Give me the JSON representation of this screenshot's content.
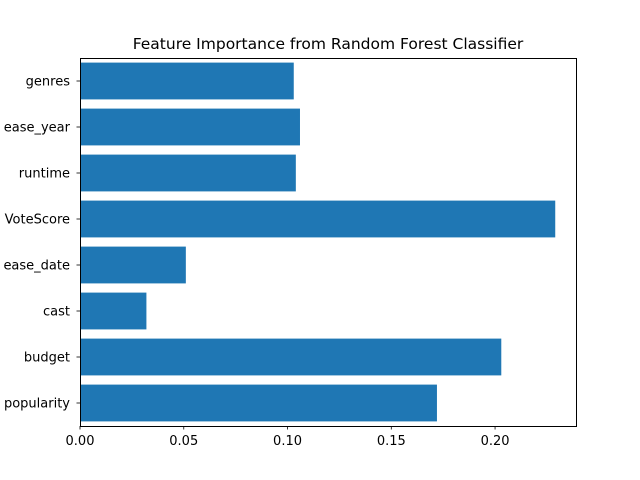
{
  "chart_data": {
    "type": "bar",
    "orientation": "horizontal",
    "title": "Feature Importance from Random Forest Classifier",
    "xlabel": "",
    "ylabel": "",
    "categories": [
      "popularity",
      "budget",
      "cast",
      "release_date",
      "VoteScore",
      "runtime",
      "release_year",
      "genres"
    ],
    "category_labels": [
      "popularity",
      "budget",
      "cast",
      "ease_date",
      "VoteScore",
      "runtime",
      "ease_year",
      "genres"
    ],
    "values": [
      0.172,
      0.203,
      0.032,
      0.051,
      0.229,
      0.104,
      0.106,
      0.103
    ],
    "xlim": [
      0,
      0.239
    ],
    "xticks": [
      0.0,
      0.05,
      0.1,
      0.15,
      0.2
    ],
    "xtick_labels": [
      "0.00",
      "0.05",
      "0.10",
      "0.15",
      "0.20"
    ],
    "grid": false,
    "legend": "none",
    "bar_color": "#1f77b4"
  }
}
